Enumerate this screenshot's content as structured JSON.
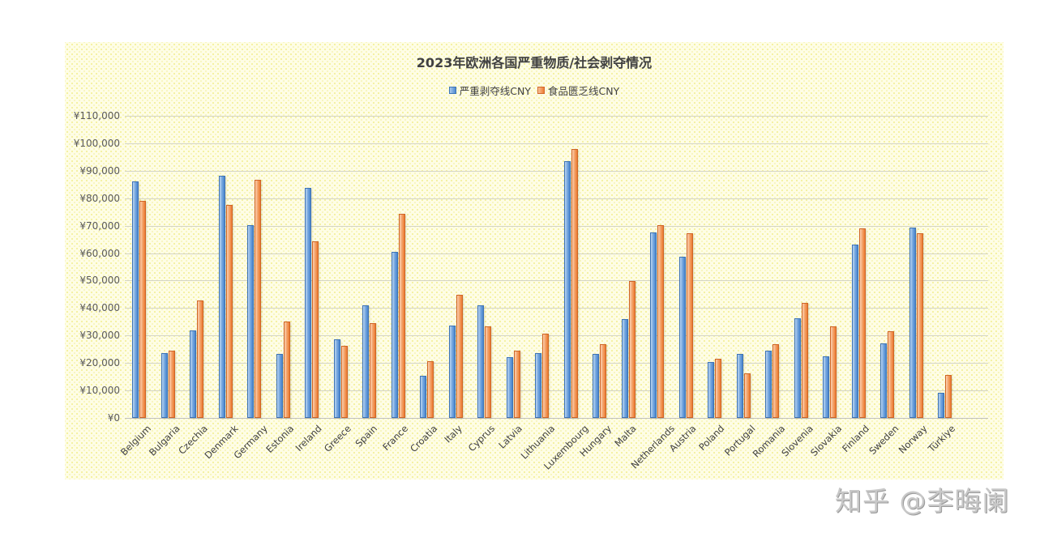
{
  "chart_data": {
    "type": "bar",
    "title": "2023年欧洲各国严重物质/社会剥夺情况",
    "xlabel": "",
    "ylabel": "",
    "ylim": [
      0,
      110000
    ],
    "yticks": [
      0,
      10000,
      20000,
      30000,
      40000,
      50000,
      60000,
      70000,
      80000,
      90000,
      100000,
      110000
    ],
    "ytick_labels": [
      "¥0",
      "¥10,000",
      "¥20,000",
      "¥30,000",
      "¥40,000",
      "¥50,000",
      "¥60,000",
      "¥70,000",
      "¥80,000",
      "¥90,000",
      "¥100,000",
      "¥110,000"
    ],
    "grid": true,
    "legend_position": "top",
    "categories": [
      "Belgium",
      "Bulgaria",
      "Czechia",
      "Denmark",
      "Germany",
      "Estonia",
      "Ireland",
      "Greece",
      "Spain",
      "France",
      "Croatia",
      "Italy",
      "Cyprus",
      "Latvia",
      "Lithuania",
      "Luxembourg",
      "Hungary",
      "Malta",
      "Netherlands",
      "Austria",
      "Poland",
      "Portugal",
      "Romania",
      "Slovenia",
      "Slovakia",
      "Finland",
      "Sweden",
      "Norway",
      "Türkiye"
    ],
    "series": [
      {
        "name": "严重剥夺线CNY",
        "color": "#4a85cc",
        "values": [
          86200,
          23500,
          31800,
          88200,
          70200,
          23300,
          83700,
          28500,
          40900,
          60400,
          15300,
          33500,
          40900,
          22200,
          23500,
          93400,
          23300,
          35900,
          67600,
          58600,
          20400,
          23300,
          24500,
          36300,
          22400,
          63000,
          27000,
          69300,
          9100
        ]
      },
      {
        "name": "食品匮乏线CNY",
        "color": "#ec7a32",
        "values": [
          78900,
          24500,
          42900,
          77600,
          86700,
          35100,
          64200,
          26300,
          34600,
          74300,
          20600,
          44700,
          33300,
          24500,
          30800,
          98000,
          26900,
          49800,
          70300,
          67100,
          21500,
          16100,
          26700,
          41900,
          33200,
          68900,
          31500,
          67300,
          15500
        ]
      }
    ]
  },
  "watermark": "知乎 @李晦阑"
}
